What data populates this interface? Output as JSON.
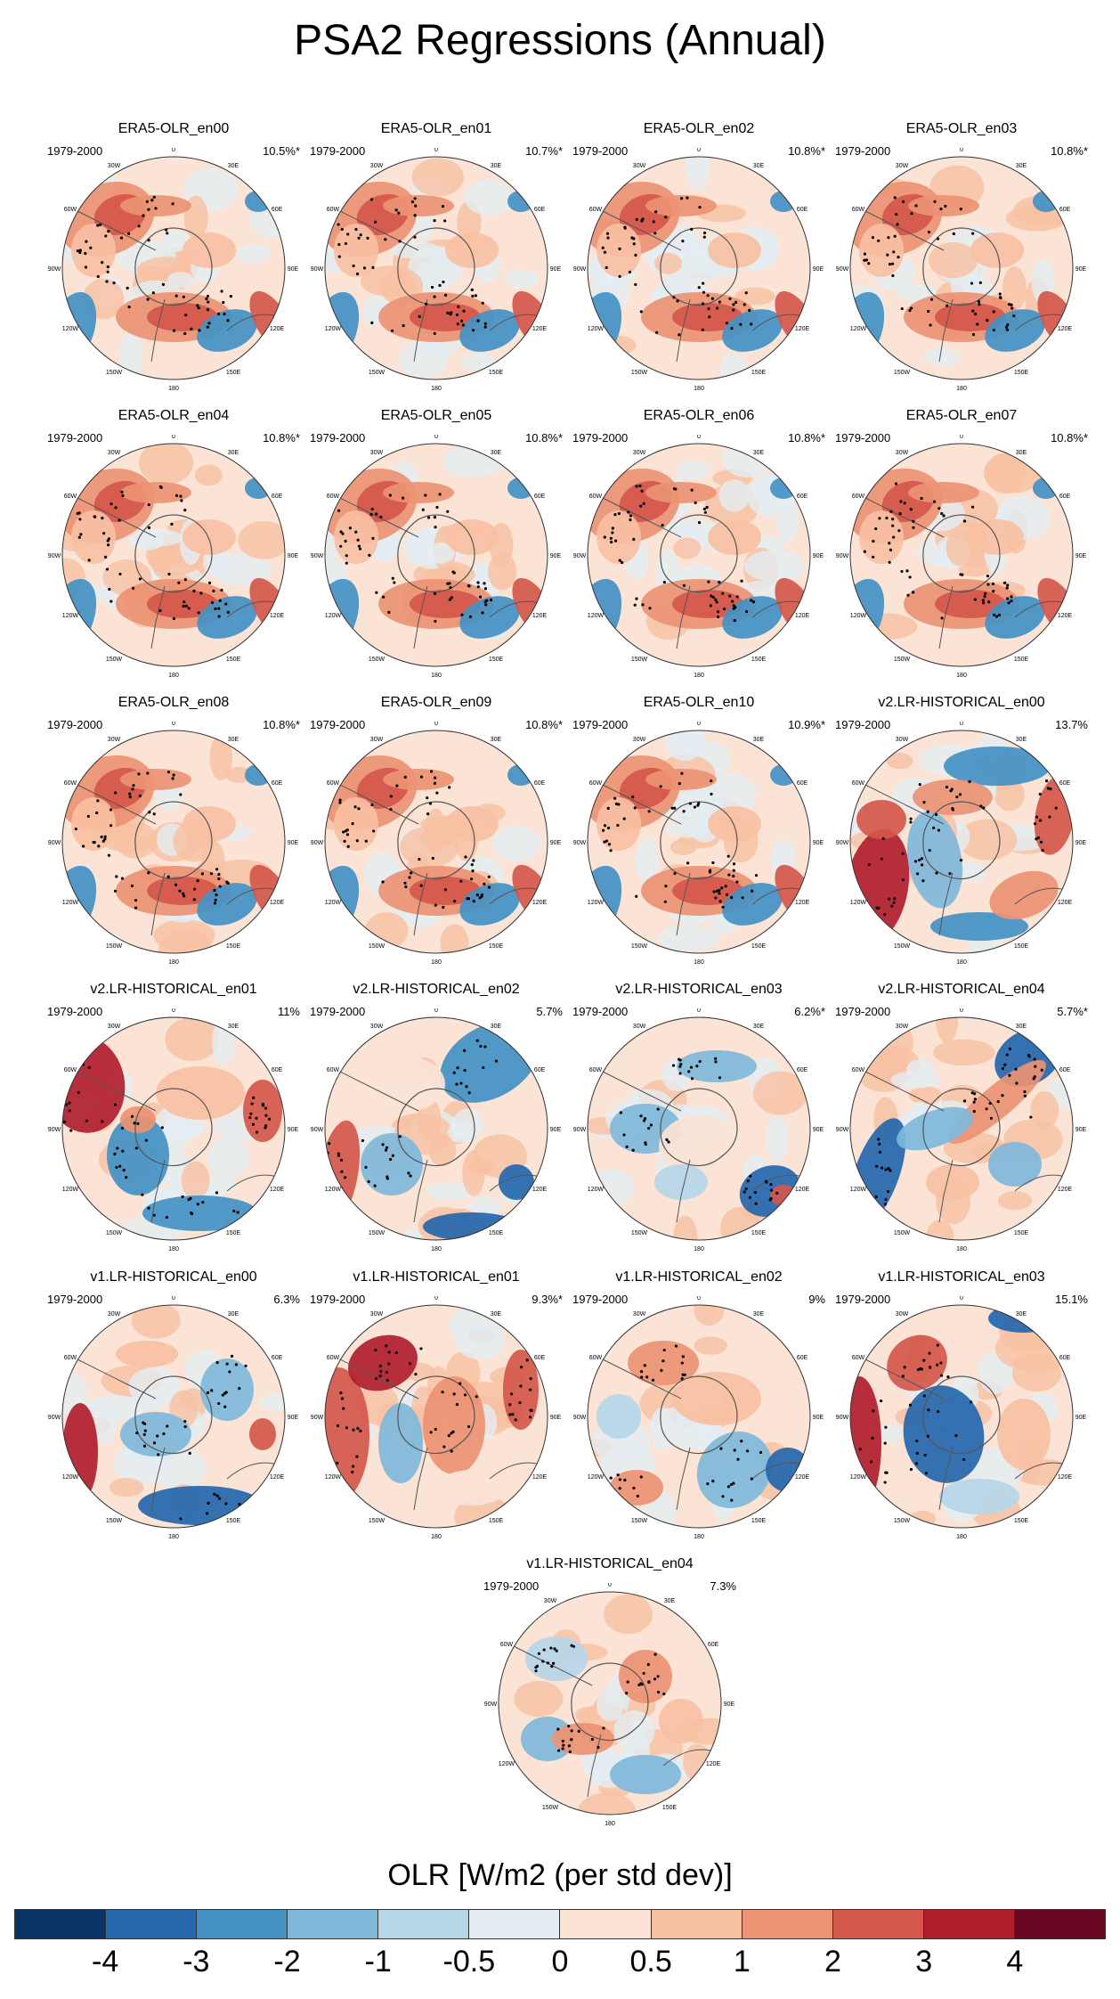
{
  "title": "PSA2 Regressions (Annual)",
  "colorbar": {
    "title": "OLR [W/m2 (per std dev)]",
    "labels": [
      "-4",
      "-3",
      "-2",
      "-1",
      "-0.5",
      "0",
      "0.5",
      "1",
      "2",
      "3",
      "4"
    ],
    "colors": [
      "#0b3466",
      "#2467ad",
      "#4391c4",
      "#7fb9da",
      "#b6d6e8",
      "#e3edf3",
      "#fbe3d6",
      "#f8c0a3",
      "#ec9373",
      "#d4574b",
      "#b01e2e",
      "#6a0621"
    ]
  },
  "map_labels": {
    "lon_top": "0",
    "lon_30w": "30W",
    "lon_30e": "30E",
    "lon_60w": "60W",
    "lon_60e": "60E",
    "lon_90w": "90W",
    "lon_90e": "90E",
    "lon_120w": "120W",
    "lon_120e": "120E",
    "lon_150w": "150W",
    "lon_150e": "150E",
    "lon_bottom": "180"
  },
  "panels": [
    {
      "title": "ERA5-OLR_en00",
      "period": "1979-2000",
      "pct": "10.5%*",
      "style": "era5"
    },
    {
      "title": "ERA5-OLR_en01",
      "period": "1979-2000",
      "pct": "10.7%*",
      "style": "era5"
    },
    {
      "title": "ERA5-OLR_en02",
      "period": "1979-2000",
      "pct": "10.8%*",
      "style": "era5"
    },
    {
      "title": "ERA5-OLR_en03",
      "period": "1979-2000",
      "pct": "10.8%*",
      "style": "era5"
    },
    {
      "title": "ERA5-OLR_en04",
      "period": "1979-2000",
      "pct": "10.8%*",
      "style": "era5"
    },
    {
      "title": "ERA5-OLR_en05",
      "period": "1979-2000",
      "pct": "10.8%*",
      "style": "era5"
    },
    {
      "title": "ERA5-OLR_en06",
      "period": "1979-2000",
      "pct": "10.8%*",
      "style": "era5"
    },
    {
      "title": "ERA5-OLR_en07",
      "period": "1979-2000",
      "pct": "10.8%*",
      "style": "era5"
    },
    {
      "title": "ERA5-OLR_en08",
      "period": "1979-2000",
      "pct": "10.8%*",
      "style": "era5"
    },
    {
      "title": "ERA5-OLR_en09",
      "period": "1979-2000",
      "pct": "10.8%*",
      "style": "era5"
    },
    {
      "title": "ERA5-OLR_en10",
      "period": "1979-2000",
      "pct": "10.9%*",
      "style": "era5"
    },
    {
      "title": "v2.LR-HISTORICAL_en00",
      "period": "1979-2000",
      "pct": "13.7%",
      "style": "v2a"
    },
    {
      "title": "v2.LR-HISTORICAL_en01",
      "period": "1979-2000",
      "pct": "11%",
      "style": "v2b"
    },
    {
      "title": "v2.LR-HISTORICAL_en02",
      "period": "1979-2000",
      "pct": "5.7%",
      "style": "v2c"
    },
    {
      "title": "v2.LR-HISTORICAL_en03",
      "period": "1979-2000",
      "pct": "6.2%*",
      "style": "v2d"
    },
    {
      "title": "v2.LR-HISTORICAL_en04",
      "period": "1979-2000",
      "pct": "5.7%*",
      "style": "v2e"
    },
    {
      "title": "v1.LR-HISTORICAL_en00",
      "period": "1979-2000",
      "pct": "6.3%",
      "style": "v1a"
    },
    {
      "title": "v1.LR-HISTORICAL_en01",
      "period": "1979-2000",
      "pct": "9.3%*",
      "style": "v1b"
    },
    {
      "title": "v1.LR-HISTORICAL_en02",
      "period": "1979-2000",
      "pct": "9%",
      "style": "v1c"
    },
    {
      "title": "v1.LR-HISTORICAL_en03",
      "period": "1979-2000",
      "pct": "15.1%",
      "style": "v1d"
    },
    {
      "title": "v1.LR-HISTORICAL_en04",
      "period": "1979-2000",
      "pct": "7.3%",
      "style": "v1e"
    }
  ]
}
